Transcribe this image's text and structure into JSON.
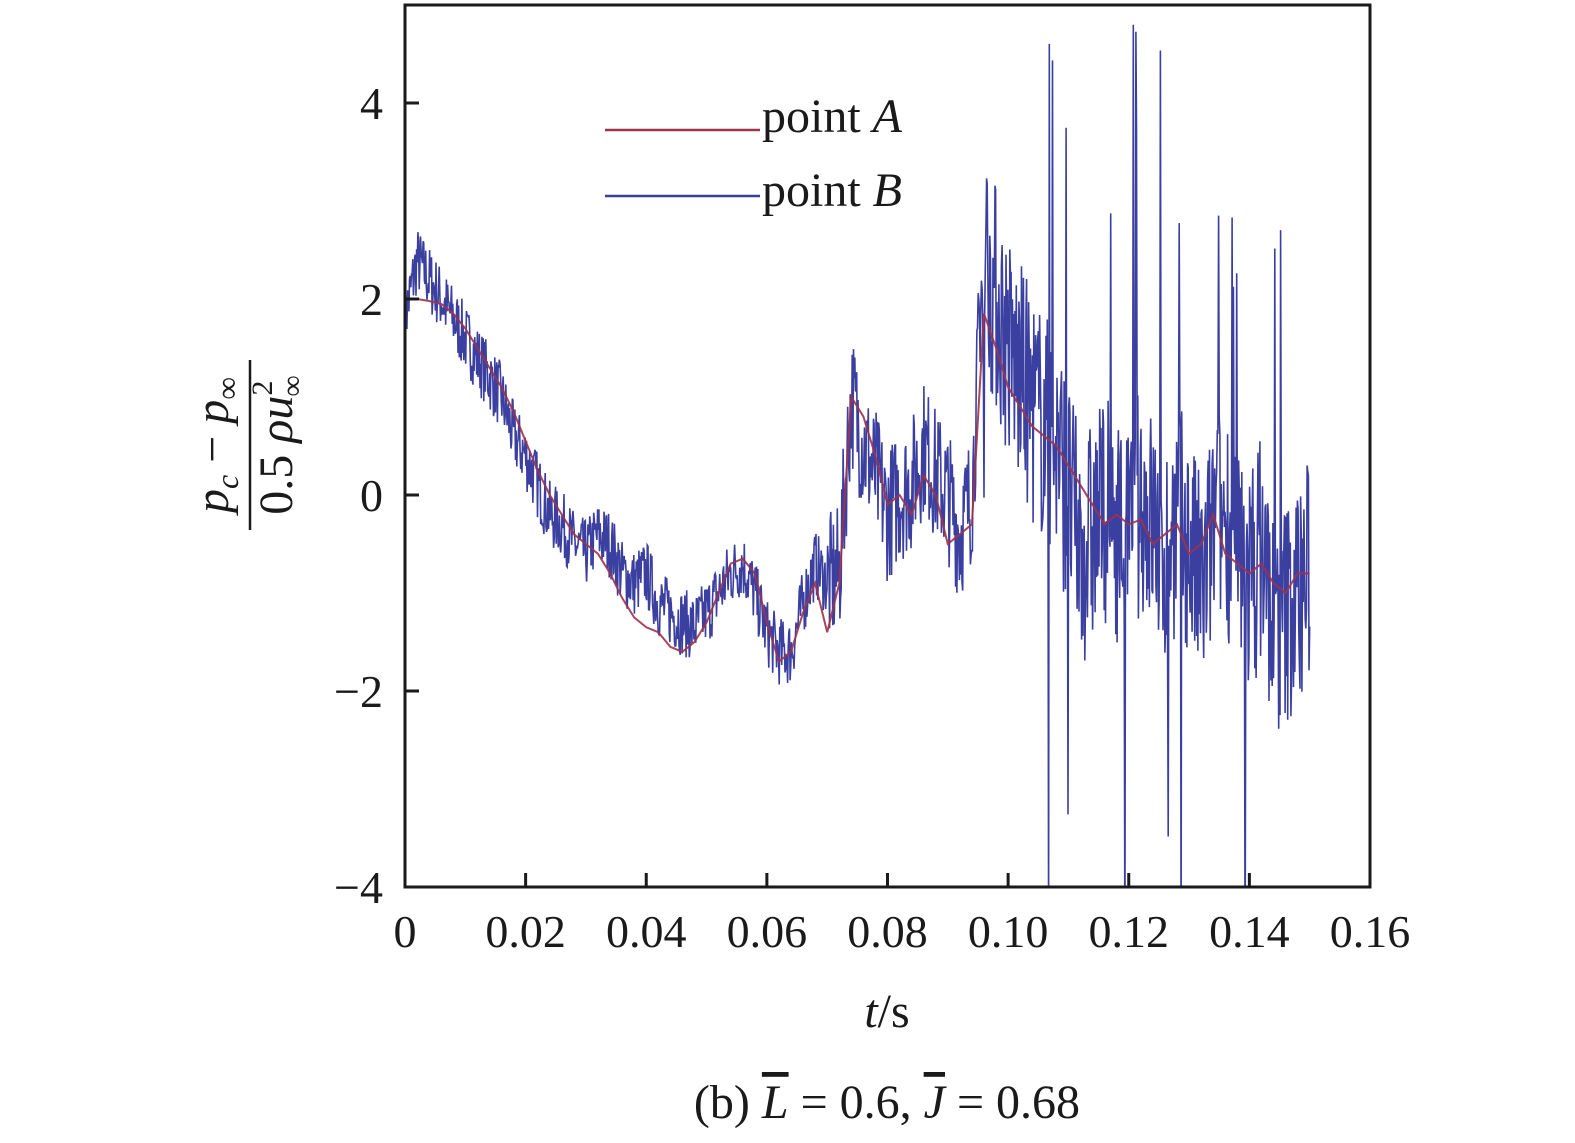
{
  "chart_data": {
    "type": "line",
    "xlabel": {
      "var": "t",
      "unit": "/s"
    },
    "ylabel": {
      "numerator": {
        "p1": "p",
        "s1": "c",
        "op": " − ",
        "p2": "p",
        "s2": "∞"
      },
      "denominator": {
        "pre": "0.5 ",
        "rho": "ρ",
        "u": "u",
        "sup": "2",
        "sub": "∞"
      }
    },
    "caption": {
      "prefix": "(b) ",
      "L": "L",
      "eq1": " = 0.6, ",
      "J": "J",
      "eq2": " = 0.68"
    },
    "xlim": [
      0,
      0.16
    ],
    "ylim": [
      -4,
      5
    ],
    "xticks": [
      0,
      0.02,
      0.04,
      0.06,
      0.08,
      0.1,
      0.12,
      0.14,
      0.16
    ],
    "xtick_labels": [
      "0",
      "0.02",
      "0.04",
      "0.06",
      "0.08",
      "0.10",
      "0.12",
      "0.14",
      "0.16"
    ],
    "yticks": [
      -4,
      -2,
      0,
      2,
      4
    ],
    "ytick_labels": [
      "−4",
      "−2",
      "0",
      "2",
      "4"
    ],
    "legend_position": "top-center",
    "series": [
      {
        "name": "point A",
        "label_prefix": "point ",
        "label_var": "A",
        "color": "#a0324a",
        "x": [
          0,
          0.002,
          0.004,
          0.006,
          0.008,
          0.01,
          0.012,
          0.014,
          0.016,
          0.018,
          0.02,
          0.022,
          0.024,
          0.026,
          0.028,
          0.03,
          0.032,
          0.034,
          0.036,
          0.038,
          0.04,
          0.042,
          0.044,
          0.046,
          0.048,
          0.05,
          0.052,
          0.054,
          0.056,
          0.058,
          0.06,
          0.062,
          0.064,
          0.066,
          0.068,
          0.07,
          0.072,
          0.074,
          0.076,
          0.078,
          0.08,
          0.082,
          0.084,
          0.086,
          0.088,
          0.09,
          0.092,
          0.094,
          0.096,
          0.098,
          0.1,
          0.102,
          0.104,
          0.106,
          0.108,
          0.11,
          0.112,
          0.114,
          0.116,
          0.118,
          0.12,
          0.122,
          0.124,
          0.126,
          0.128,
          0.13,
          0.132,
          0.134,
          0.136,
          0.138,
          0.14,
          0.142,
          0.144,
          0.146,
          0.148,
          0.15
        ],
        "y": [
          2.0,
          2.0,
          1.98,
          1.95,
          1.85,
          1.7,
          1.5,
          1.3,
          1.1,
          0.85,
          0.55,
          0.25,
          0.0,
          -0.2,
          -0.4,
          -0.5,
          -0.6,
          -0.8,
          -1.05,
          -1.25,
          -1.35,
          -1.4,
          -1.55,
          -1.6,
          -1.5,
          -1.3,
          -1.0,
          -0.7,
          -0.65,
          -0.8,
          -1.3,
          -1.7,
          -1.6,
          -1.2,
          -0.9,
          -1.4,
          -0.9,
          1.0,
          0.8,
          0.4,
          -0.1,
          0.0,
          -0.2,
          0.2,
          0.0,
          -0.5,
          -0.4,
          -0.3,
          1.85,
          1.5,
          1.1,
          0.9,
          0.7,
          0.6,
          0.5,
          0.3,
          0.1,
          -0.1,
          -0.3,
          -0.2,
          -0.3,
          -0.25,
          -0.5,
          -0.4,
          -0.3,
          -0.6,
          -0.5,
          -0.2,
          -0.6,
          -0.7,
          -0.8,
          -0.7,
          -0.9,
          -1.0,
          -0.8,
          -0.8
        ]
      },
      {
        "name": "point B",
        "label_prefix": "point ",
        "label_var": "B",
        "color": "#3b40a0",
        "x": [
          0,
          0.002,
          0.004,
          0.006,
          0.008,
          0.01,
          0.012,
          0.014,
          0.016,
          0.018,
          0.02,
          0.022,
          0.024,
          0.026,
          0.028,
          0.03,
          0.032,
          0.034,
          0.036,
          0.038,
          0.04,
          0.042,
          0.044,
          0.046,
          0.048,
          0.05,
          0.052,
          0.054,
          0.056,
          0.058,
          0.06,
          0.062,
          0.064,
          0.066,
          0.068,
          0.07,
          0.072,
          0.074,
          0.076,
          0.078,
          0.08,
          0.082,
          0.084,
          0.086,
          0.088,
          0.09,
          0.092,
          0.094,
          0.096,
          0.098,
          0.1,
          0.102,
          0.104,
          0.106,
          0.108,
          0.11,
          0.112,
          0.114,
          0.116,
          0.118,
          0.12,
          0.122,
          0.124,
          0.126,
          0.128,
          0.13,
          0.132,
          0.134,
          0.136,
          0.138,
          0.14,
          0.142,
          0.144,
          0.146,
          0.148,
          0.15
        ],
        "y": [
          1.8,
          2.4,
          2.2,
          2.0,
          1.8,
          1.6,
          1.4,
          1.2,
          1.0,
          0.6,
          0.4,
          0.1,
          -0.2,
          -0.3,
          -0.5,
          -0.6,
          -0.4,
          -0.5,
          -0.8,
          -0.9,
          -0.8,
          -1.1,
          -1.2,
          -1.3,
          -1.35,
          -1.2,
          -1.0,
          -0.8,
          -0.7,
          -1.0,
          -1.4,
          -1.6,
          -1.6,
          -1.1,
          -0.7,
          -0.9,
          -0.8,
          1.0,
          0.5,
          0.2,
          -0.2,
          0.0,
          0.1,
          0.5,
          0.2,
          0.0,
          -0.4,
          0.0,
          2.5,
          2.0,
          1.5,
          1.2,
          0.9,
          0.7,
          0.5,
          0.0,
          -0.6,
          -0.4,
          -0.1,
          -0.3,
          -0.5,
          0.0,
          -0.3,
          -0.6,
          -0.2,
          -0.5,
          -1.0,
          -0.4,
          -0.2,
          -0.6,
          -0.9,
          -0.5,
          -1.3,
          -1.2,
          -1.0,
          -0.8
        ]
      }
    ]
  }
}
